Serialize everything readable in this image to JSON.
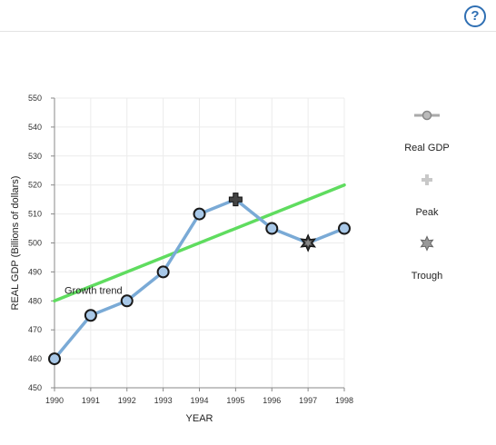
{
  "header": {
    "help_label": "?"
  },
  "chart_data": {
    "type": "line",
    "xlabel": "YEAR",
    "ylabel": "REAL GDP (Billions of dollars)",
    "xlim": [
      1990,
      1998
    ],
    "ylim": [
      450,
      550
    ],
    "x_ticks": [
      1990,
      1991,
      1992,
      1993,
      1994,
      1995,
      1996,
      1997,
      1998
    ],
    "y_ticks": [
      450,
      460,
      470,
      480,
      490,
      500,
      510,
      520,
      530,
      540,
      550
    ],
    "grid": true,
    "legend_position": "right",
    "colors": {
      "real_gdp": "#7aaad6",
      "trend": "#5fdc5f",
      "marker_fill": "#a8c8e8",
      "marker_stroke": "#1a1a1a"
    },
    "series": [
      {
        "name": "Real GDP",
        "points": [
          {
            "x": 1990,
            "y": 460,
            "marker": "circle"
          },
          {
            "x": 1991,
            "y": 475,
            "marker": "circle"
          },
          {
            "x": 1992,
            "y": 480,
            "marker": "circle"
          },
          {
            "x": 1993,
            "y": 490,
            "marker": "circle"
          },
          {
            "x": 1994,
            "y": 510,
            "marker": "circle"
          },
          {
            "x": 1995,
            "y": 515,
            "marker": "peak"
          },
          {
            "x": 1996,
            "y": 505,
            "marker": "circle"
          },
          {
            "x": 1997,
            "y": 500,
            "marker": "trough"
          },
          {
            "x": 1998,
            "y": 505,
            "marker": "circle"
          }
        ]
      }
    ],
    "trend_line": {
      "label": "Growth trend",
      "from": {
        "x": 1990,
        "y": 480
      },
      "to": {
        "x": 1998,
        "y": 520
      }
    },
    "legend": [
      {
        "label": "Real GDP",
        "icon": "line-circle-icon"
      },
      {
        "label": "Peak",
        "icon": "plus-icon"
      },
      {
        "label": "Trough",
        "icon": "star-icon"
      }
    ]
  }
}
